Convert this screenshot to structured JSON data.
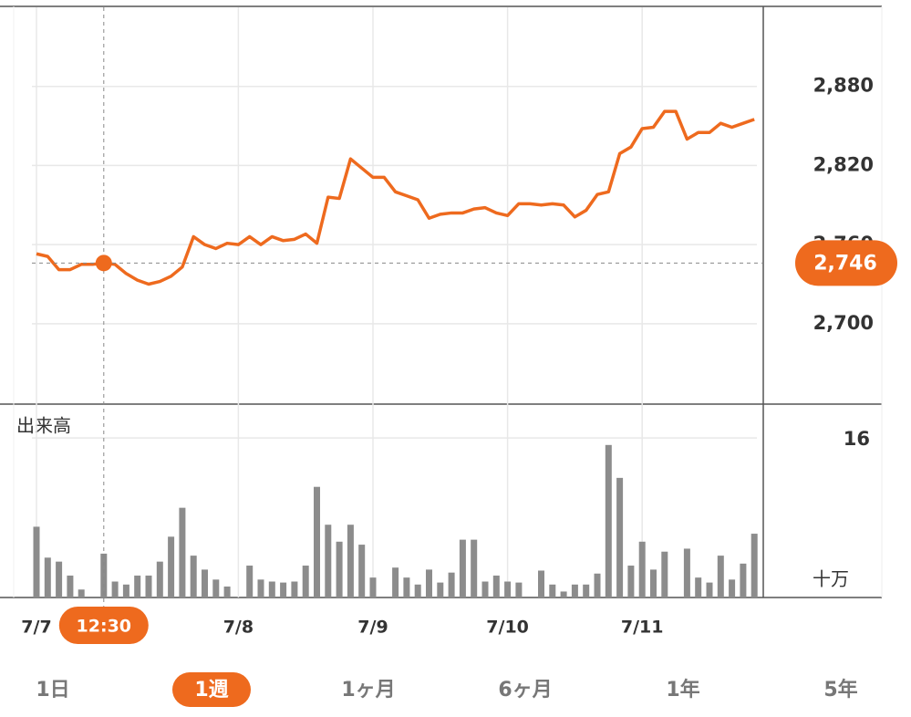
{
  "chart_data": [
    {
      "type": "line",
      "categories": [
        "7/7",
        null,
        null,
        null,
        null,
        null,
        "12:30",
        null,
        null,
        null,
        null,
        null,
        null,
        null,
        null,
        null,
        null,
        null,
        "7/8",
        null,
        null,
        null,
        null,
        null,
        null,
        null,
        null,
        null,
        null,
        null,
        "7/9",
        null,
        null,
        null,
        null,
        null,
        null,
        null,
        null,
        null,
        null,
        null,
        "7/10",
        null,
        null,
        null,
        null,
        null,
        null,
        null,
        null,
        null,
        null,
        null,
        "7/11",
        null,
        null,
        null,
        null,
        null,
        null,
        null,
        null,
        null,
        null
      ],
      "values": [
        2753,
        2751,
        2741,
        2741,
        2745,
        2745,
        2746,
        2745,
        2738,
        2733,
        2730,
        2732,
        2736,
        2743,
        2766,
        2760,
        2757,
        2761,
        2760,
        2766,
        2760,
        2766,
        2763,
        2764,
        2768,
        2761,
        2796,
        2795,
        2825,
        2818,
        2811,
        2811,
        2800,
        2797,
        2794,
        2780,
        2783,
        2784,
        2784,
        2787,
        2788,
        2784,
        2782,
        2791,
        2791,
        2790,
        2791,
        2790,
        2781,
        2786,
        2798,
        2800,
        2829,
        2834,
        2848,
        2849,
        2861,
        2861,
        2840,
        2845,
        2845,
        2852,
        2849,
        2852,
        2855
      ],
      "value_labels": [
        null,
        null,
        null,
        null,
        null,
        null,
        "2,746",
        null,
        null,
        null,
        null,
        null,
        null,
        null,
        null,
        null,
        null,
        null,
        null,
        null,
        null,
        null,
        null,
        null,
        null,
        null,
        null,
        null,
        null,
        null,
        null,
        null,
        null,
        null,
        null,
        null,
        null,
        null,
        null,
        null,
        null,
        null,
        null,
        null,
        null,
        null,
        null,
        null,
        null,
        null,
        null,
        null,
        null,
        null,
        null,
        null,
        null,
        null,
        null,
        null,
        null,
        null,
        null,
        null,
        null
      ],
      "color": "#ee6a1e",
      "ylim": [
        2639,
        2940
      ],
      "yticks": [
        {
          "value": 2700,
          "label": "2,700"
        },
        {
          "value": 2760,
          "label": "2,760"
        },
        {
          "value": 2820,
          "label": "2,820"
        },
        {
          "value": 2880,
          "label": "2,880"
        }
      ],
      "grid": true
    },
    {
      "type": "bar",
      "title": "出来高",
      "unit_label": "十万",
      "values": [
        7.1,
        4.0,
        3.6,
        2.2,
        0.8,
        0,
        4.4,
        1.6,
        1.3,
        2.2,
        2.2,
        3.6,
        6.1,
        9.0,
        4.2,
        2.8,
        1.8,
        1.1,
        0,
        3.2,
        1.8,
        1.6,
        1.5,
        1.6,
        3.2,
        11.1,
        7.3,
        5.6,
        7.3,
        5.3,
        2.0,
        0,
        3.0,
        2.0,
        1.3,
        2.8,
        1.5,
        2.5,
        5.8,
        5.8,
        1.6,
        2.2,
        1.6,
        1.5,
        0,
        2.7,
        1.3,
        0.6,
        1.3,
        1.3,
        2.4,
        15.3,
        12.0,
        3.2,
        5.6,
        2.8,
        4.6,
        0,
        4.9,
        2.0,
        1.5,
        4.2,
        1.8,
        3.4,
        6.4
      ],
      "color": "#8c8c8c",
      "ylim": [
        0,
        19.4
      ],
      "yticks": [
        16
      ],
      "grid": true
    }
  ],
  "tabs": {
    "items": [
      "1日",
      "1週",
      "1ヶ月",
      "6ヶ月",
      "1年",
      "5年"
    ],
    "selected_index": 1
  }
}
